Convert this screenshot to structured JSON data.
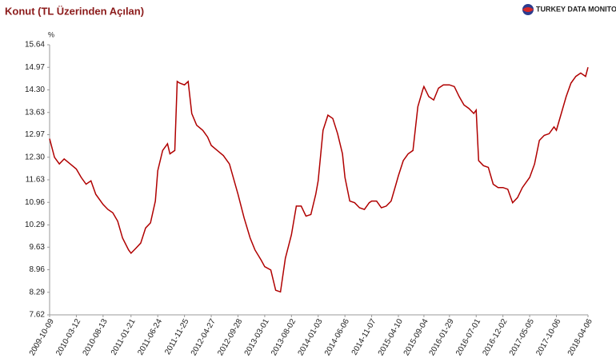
{
  "chart_data": {
    "type": "line",
    "title": "Konut (TL Üzerinden Açılan)",
    "brand": "TURKEY DATA MONITOR",
    "y_label": "%",
    "x": [
      "2009-10-09",
      "2009-11-06",
      "2009-12-04",
      "2010-01-01",
      "2010-02-05",
      "2010-03-12",
      "2010-04-09",
      "2010-05-07",
      "2010-06-04",
      "2010-07-02",
      "2010-08-13",
      "2010-09-10",
      "2010-10-08",
      "2010-11-05",
      "2010-12-03",
      "2011-01-07",
      "2011-01-21",
      "2011-02-18",
      "2011-03-18",
      "2011-04-15",
      "2011-05-13",
      "2011-06-10",
      "2011-06-24",
      "2011-07-22",
      "2011-08-19",
      "2011-09-02",
      "2011-09-30",
      "2011-10-14",
      "2011-10-28",
      "2011-11-25",
      "2011-12-16",
      "2012-01-06",
      "2012-02-03",
      "2012-03-09",
      "2012-04-06",
      "2012-04-27",
      "2012-06-01",
      "2012-07-06",
      "2012-08-10",
      "2012-09-28",
      "2012-11-02",
      "2012-12-07",
      "2013-01-04",
      "2013-02-08",
      "2013-03-01",
      "2013-04-05",
      "2013-05-03",
      "2013-05-31",
      "2013-06-28",
      "2013-08-02",
      "2013-08-30",
      "2013-09-27",
      "2013-10-25",
      "2013-11-22",
      "2013-12-20",
      "2014-01-03",
      "2014-01-31",
      "2014-02-28",
      "2014-03-28",
      "2014-04-25",
      "2014-05-23",
      "2014-06-06",
      "2014-07-04",
      "2014-08-01",
      "2014-08-29",
      "2014-09-26",
      "2014-10-24",
      "2014-11-07",
      "2014-12-05",
      "2015-01-02",
      "2015-01-30",
      "2015-02-27",
      "2015-03-27",
      "2015-04-10",
      "2015-05-08",
      "2015-06-05",
      "2015-07-03",
      "2015-07-31",
      "2015-08-28",
      "2015-09-04",
      "2015-10-02",
      "2015-10-30",
      "2015-11-27",
      "2015-12-25",
      "2016-01-29",
      "2016-02-26",
      "2016-03-25",
      "2016-04-22",
      "2016-05-20",
      "2016-06-17",
      "2016-07-01",
      "2016-07-15",
      "2016-08-12",
      "2016-09-09",
      "2016-10-07",
      "2016-11-04",
      "2016-12-02",
      "2016-12-30",
      "2017-01-27",
      "2017-02-24",
      "2017-03-24",
      "2017-04-21",
      "2017-05-05",
      "2017-06-02",
      "2017-06-30",
      "2017-07-28",
      "2017-08-25",
      "2017-09-22",
      "2017-10-06",
      "2017-11-03",
      "2017-12-01",
      "2017-12-29",
      "2018-01-26",
      "2018-02-23",
      "2018-03-23",
      "2018-04-06"
    ],
    "series": [
      {
        "name": "Konut",
        "color": "#b00000",
        "values": [
          12.85,
          12.3,
          12.1,
          12.25,
          12.1,
          11.95,
          11.7,
          11.5,
          11.6,
          11.2,
          10.9,
          10.75,
          10.65,
          10.4,
          9.9,
          9.55,
          9.45,
          9.6,
          9.75,
          10.2,
          10.35,
          11.0,
          11.9,
          12.5,
          12.7,
          12.4,
          12.5,
          14.55,
          14.5,
          14.45,
          14.55,
          13.6,
          13.25,
          13.1,
          12.9,
          12.65,
          12.5,
          12.35,
          12.1,
          11.2,
          10.5,
          9.9,
          9.55,
          9.25,
          9.05,
          8.95,
          8.35,
          8.3,
          9.3,
          10.0,
          10.85,
          10.85,
          10.55,
          10.6,
          11.2,
          11.6,
          13.1,
          13.55,
          13.45,
          13.0,
          12.4,
          11.7,
          11.0,
          10.95,
          10.8,
          10.75,
          10.95,
          11.0,
          11.0,
          10.8,
          10.85,
          11.0,
          11.5,
          11.75,
          12.2,
          12.4,
          12.5,
          13.8,
          14.3,
          14.4,
          14.1,
          14.0,
          14.35,
          14.45,
          14.45,
          14.4,
          14.1,
          13.85,
          13.75,
          13.6,
          13.7,
          12.2,
          12.05,
          12.0,
          11.5,
          11.4,
          11.4,
          11.35,
          10.95,
          11.1,
          11.4,
          11.6,
          11.7,
          12.1,
          12.8,
          12.95,
          13.0,
          13.2,
          13.1,
          13.6,
          14.1,
          14.5,
          14.7,
          14.8,
          14.7,
          14.97
        ]
      }
    ],
    "xticks": [
      "2009-10-09",
      "2010-03-12",
      "2010-08-13",
      "2011-01-21",
      "2011-06-24",
      "2011-11-25",
      "2012-04-27",
      "2012-09-28",
      "2013-03-01",
      "2013-08-02",
      "2014-01-03",
      "2014-06-06",
      "2014-11-07",
      "2015-04-10",
      "2015-09-04",
      "2016-01-29",
      "2016-07-01",
      "2016-12-02",
      "2017-05-05",
      "2017-10-06",
      "2018-04-06"
    ],
    "ylim": [
      7.62,
      15.64
    ],
    "yticks": [
      7.62,
      8.29,
      8.96,
      9.63,
      {
        "value": 10.29,
        "label": "10.29"
      },
      10.96,
      11.63,
      {
        "value": 12.3,
        "label": "12.30"
      },
      12.97,
      13.63,
      {
        "value": 14.3,
        "label": "14.30"
      },
      14.97,
      15.64
    ],
    "grid": false
  }
}
